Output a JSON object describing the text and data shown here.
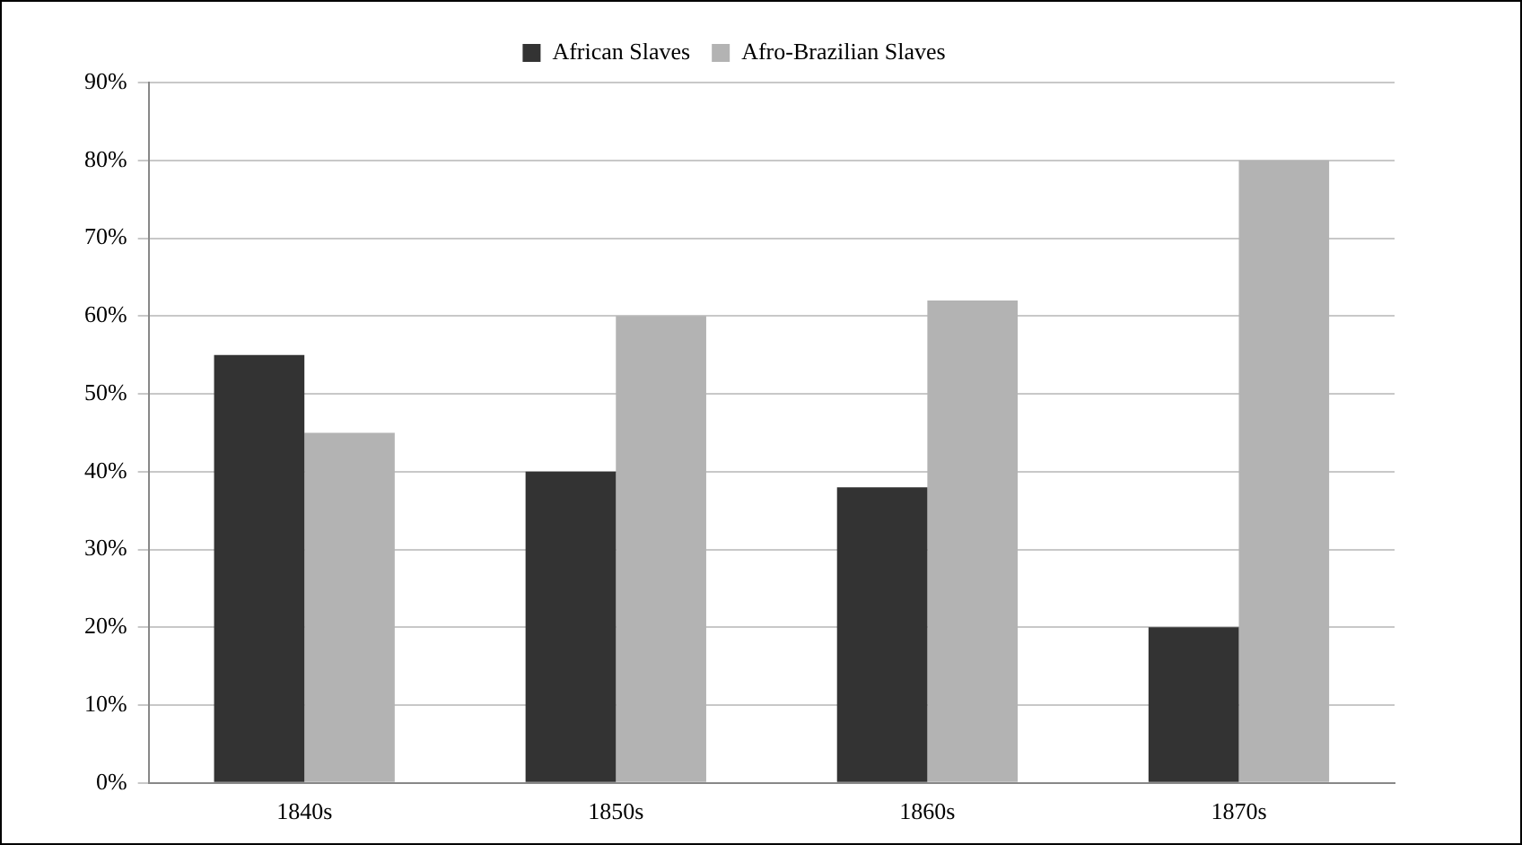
{
  "chart_data": {
    "type": "bar",
    "categories": [
      "1840s",
      "1850s",
      "1860s",
      "1870s"
    ],
    "series": [
      {
        "name": "African Slaves",
        "color": "#333333",
        "values": [
          55,
          40,
          38,
          20
        ]
      },
      {
        "name": "Afro-Brazilian Slaves",
        "color": "#b3b3b3",
        "values": [
          45,
          60,
          62,
          80
        ]
      }
    ],
    "ylim": [
      0,
      90
    ],
    "yticks": [
      {
        "value": 0,
        "label": "0%"
      },
      {
        "value": 10,
        "label": "10%"
      },
      {
        "value": 20,
        "label": "20%"
      },
      {
        "value": 30,
        "label": "30%"
      },
      {
        "value": 40,
        "label": "40%"
      },
      {
        "value": 50,
        "label": "50%"
      },
      {
        "value": 60,
        "label": "60%"
      },
      {
        "value": 70,
        "label": "70%"
      },
      {
        "value": 80,
        "label": "80%"
      },
      {
        "value": 90,
        "label": "90%"
      }
    ],
    "grid": "y",
    "legend": "top"
  }
}
